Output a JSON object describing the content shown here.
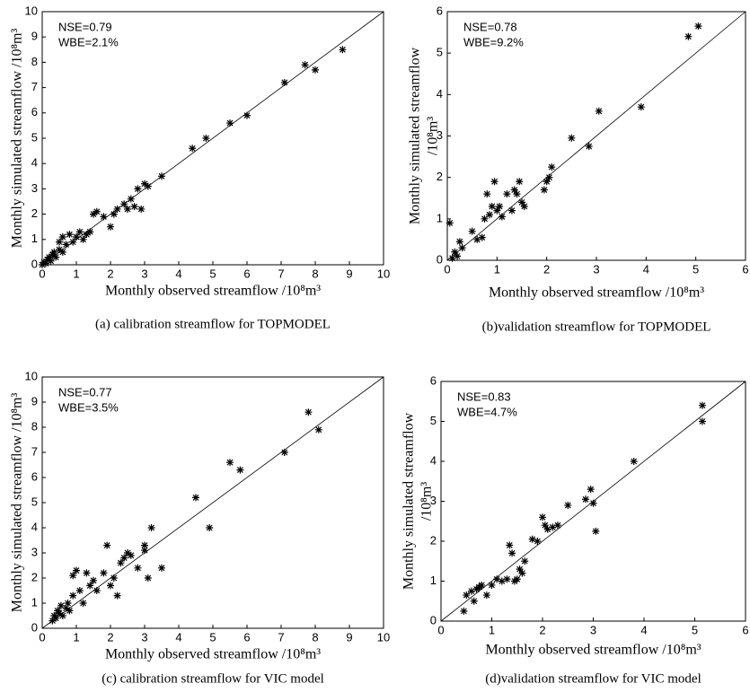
{
  "chart_data": [
    {
      "type": "scatter",
      "color": "#000000",
      "xlabel": "Monthly observed streamflow /10⁸m³",
      "ylabel": [
        "Monthly simulated streamflow /10⁸m³"
      ],
      "annotations": [
        "NSE=0.79",
        "WBE=2.1%"
      ],
      "caption": "(a) calibration streamflow for TOPMODEL",
      "xlim": [
        0,
        10
      ],
      "ylim": [
        0,
        10
      ],
      "xticks": [
        0,
        1,
        2,
        3,
        4,
        5,
        6,
        7,
        8,
        9,
        10
      ],
      "yticks": [
        0,
        1,
        2,
        3,
        4,
        5,
        6,
        7,
        8,
        9,
        10
      ],
      "x": [
        0,
        0.05,
        0.1,
        0.15,
        0.2,
        0.25,
        0.3,
        0.35,
        0.4,
        0.5,
        0.5,
        0.6,
        0.6,
        0.7,
        0.8,
        0.9,
        1.0,
        1.1,
        1.2,
        1.3,
        1.4,
        1.5,
        1.6,
        1.8,
        2.0,
        2.1,
        2.2,
        2.4,
        2.5,
        2.6,
        2.7,
        2.8,
        2.9,
        3.0,
        3.1,
        3.5,
        4.4,
        4.8,
        5.5,
        6.0,
        7.1,
        7.7,
        8.0,
        8.8
      ],
      "y": [
        0,
        0.1,
        0.05,
        0.2,
        0.3,
        0.15,
        0.4,
        0.5,
        0.3,
        0.6,
        0.9,
        0.5,
        1.1,
        0.8,
        1.2,
        0.9,
        1.1,
        1.3,
        1.0,
        1.2,
        1.3,
        2.0,
        2.1,
        1.9,
        1.5,
        2.0,
        2.2,
        2.4,
        2.2,
        2.6,
        2.3,
        3.0,
        2.2,
        3.2,
        3.1,
        3.5,
        4.6,
        5.0,
        5.6,
        5.9,
        7.2,
        7.9,
        7.7,
        8.5
      ]
    },
    {
      "type": "scatter",
      "color": "#000000",
      "xlabel": "Monthly observed streamflow /10⁸m³",
      "ylabel": [
        "Monthly simulated streamflow",
        "/10⁸m³"
      ],
      "annotations": [
        "NSE=0.78",
        "WBE=9.2%"
      ],
      "caption": "(b)validation streamflow for TOPMODEL",
      "xlim": [
        0,
        6
      ],
      "ylim": [
        0,
        6
      ],
      "xticks": [
        0,
        1,
        2,
        3,
        4,
        5,
        6
      ],
      "yticks": [
        0,
        1,
        2,
        3,
        4,
        5,
        6
      ],
      "x": [
        0.05,
        0.1,
        0.15,
        0.2,
        0.25,
        0.3,
        0.5,
        0.6,
        0.7,
        0.75,
        0.8,
        0.85,
        0.9,
        0.95,
        1.0,
        1.05,
        1.1,
        1.2,
        1.3,
        1.35,
        1.4,
        1.45,
        1.5,
        1.55,
        1.95,
        2.0,
        2.05,
        2.1,
        2.5,
        2.85,
        3.05,
        3.9,
        4.85,
        5.05
      ],
      "y": [
        0.9,
        0.05,
        0.2,
        0.1,
        0.45,
        0.3,
        0.7,
        0.5,
        0.55,
        1.0,
        1.6,
        1.1,
        1.3,
        1.9,
        1.2,
        1.3,
        1.05,
        1.6,
        1.2,
        1.7,
        1.6,
        1.9,
        1.4,
        1.3,
        1.7,
        1.9,
        2.0,
        2.25,
        2.95,
        2.75,
        3.6,
        3.7,
        5.4,
        5.65
      ]
    },
    {
      "type": "scatter",
      "color": "#000000",
      "xlabel": "Monthly observed streamflow /10⁸m³",
      "ylabel": [
        "Monthly simulated streamflow /10⁸m³"
      ],
      "annotations": [
        "NSE=0.77",
        "WBE=3.5%"
      ],
      "caption": "(c) calibration streamflow for VIC model",
      "xlim": [
        0,
        10
      ],
      "ylim": [
        0,
        10
      ],
      "xticks": [
        0,
        1,
        2,
        3,
        4,
        5,
        6,
        7,
        8,
        9,
        10
      ],
      "yticks": [
        0,
        1,
        2,
        3,
        4,
        5,
        6,
        7,
        8,
        9,
        10
      ],
      "x": [
        0.3,
        0.35,
        0.4,
        0.45,
        0.5,
        0.55,
        0.6,
        0.7,
        0.75,
        0.8,
        0.9,
        0.9,
        1.0,
        1.1,
        1.2,
        1.3,
        1.4,
        1.5,
        1.6,
        1.8,
        1.9,
        2.0,
        2.1,
        2.2,
        2.3,
        2.4,
        2.5,
        2.6,
        2.8,
        3.0,
        3.0,
        3.1,
        3.2,
        3.5,
        4.5,
        4.9,
        5.5,
        5.8,
        7.1,
        7.8,
        8.1
      ],
      "y": [
        0.3,
        0.5,
        0.4,
        0.7,
        0.6,
        0.9,
        0.5,
        0.8,
        1.0,
        0.7,
        1.3,
        2.1,
        2.3,
        1.5,
        1.0,
        2.2,
        1.7,
        1.9,
        1.5,
        2.2,
        3.3,
        1.7,
        2.0,
        1.3,
        2.6,
        2.8,
        3.0,
        2.9,
        2.4,
        3.3,
        3.1,
        2.0,
        4.0,
        2.4,
        5.2,
        4.0,
        6.6,
        6.3,
        7.0,
        8.6,
        7.9
      ]
    },
    {
      "type": "scatter",
      "color": "#000000",
      "xlabel": "Monthly observed streamflow /10⁸m³",
      "ylabel": [
        "Monthly simulated streamflow",
        "/10⁸m³"
      ],
      "annotations": [
        "NSE=0.83",
        "WBE=4.7%"
      ],
      "caption": "(d)validation streamflow for VIC model",
      "xlim": [
        0,
        6
      ],
      "ylim": [
        0,
        6
      ],
      "xticks": [
        0,
        1,
        2,
        3,
        4,
        5,
        6
      ],
      "yticks": [
        0,
        1,
        2,
        3,
        4,
        5,
        6
      ],
      "x": [
        0.45,
        0.5,
        0.6,
        0.65,
        0.7,
        0.75,
        0.8,
        0.9,
        1.0,
        1.1,
        1.2,
        1.3,
        1.35,
        1.4,
        1.45,
        1.5,
        1.55,
        1.6,
        1.65,
        1.8,
        1.9,
        2.0,
        2.05,
        2.1,
        2.2,
        2.3,
        2.5,
        2.85,
        2.95,
        3.0,
        3.05,
        3.8,
        5.15,
        5.15
      ],
      "y": [
        0.25,
        0.65,
        0.75,
        0.5,
        0.8,
        0.85,
        0.9,
        0.65,
        0.9,
        1.05,
        1.0,
        1.05,
        1.9,
        1.7,
        1.0,
        1.05,
        1.3,
        1.2,
        1.5,
        2.05,
        2.0,
        2.6,
        2.4,
        2.3,
        2.35,
        2.4,
        2.9,
        3.05,
        3.3,
        2.95,
        2.25,
        4.0,
        5.4,
        5.0
      ]
    }
  ]
}
